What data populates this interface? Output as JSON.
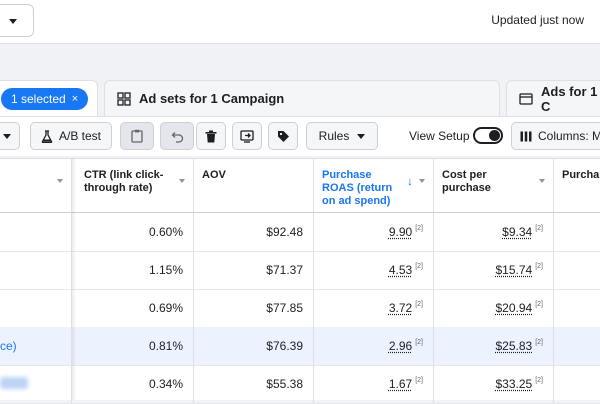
{
  "header": {
    "updated_text": "Updated just now"
  },
  "tabs": {
    "campaigns": {
      "selected_label": "1 selected",
      "close_glyph": "×"
    },
    "adsets": {
      "label": "Ad sets for 1 Campaign"
    },
    "ads": {
      "label": "Ads for 1 C"
    }
  },
  "toolbar": {
    "ab_test_label": "A/B test",
    "rules_label": "Rules",
    "view_setup_label": "View Setup",
    "columns_label": "Columns: M"
  },
  "table": {
    "headers": {
      "ctr": "CTR (link click-through rate)",
      "aov": "AOV",
      "roas": "Purchase ROAS (return on ad spend)",
      "cpp": "Cost per purchase",
      "purchases": "Purcha"
    },
    "footnote_marker": "[2]",
    "rows": [
      {
        "name": "",
        "ctr": "0.60%",
        "aov": "$92.48",
        "roas": "9.90",
        "cpp": "$9.34"
      },
      {
        "name": "",
        "ctr": "1.15%",
        "aov": "$71.37",
        "roas": "4.53",
        "cpp": "$15.74"
      },
      {
        "name": "",
        "ctr": "0.69%",
        "aov": "$77.85",
        "roas": "3.72",
        "cpp": "$20.94"
      },
      {
        "name": "ce)",
        "ctr": "0.81%",
        "aov": "$76.39",
        "roas": "2.96",
        "cpp": "$25.83"
      },
      {
        "name": "",
        "ctr": "0.34%",
        "aov": "$55.38",
        "roas": "1.67",
        "cpp": "$33.25"
      }
    ]
  },
  "colors": {
    "accent": "#1877f2",
    "highlight_row": "#ecf3ff"
  }
}
